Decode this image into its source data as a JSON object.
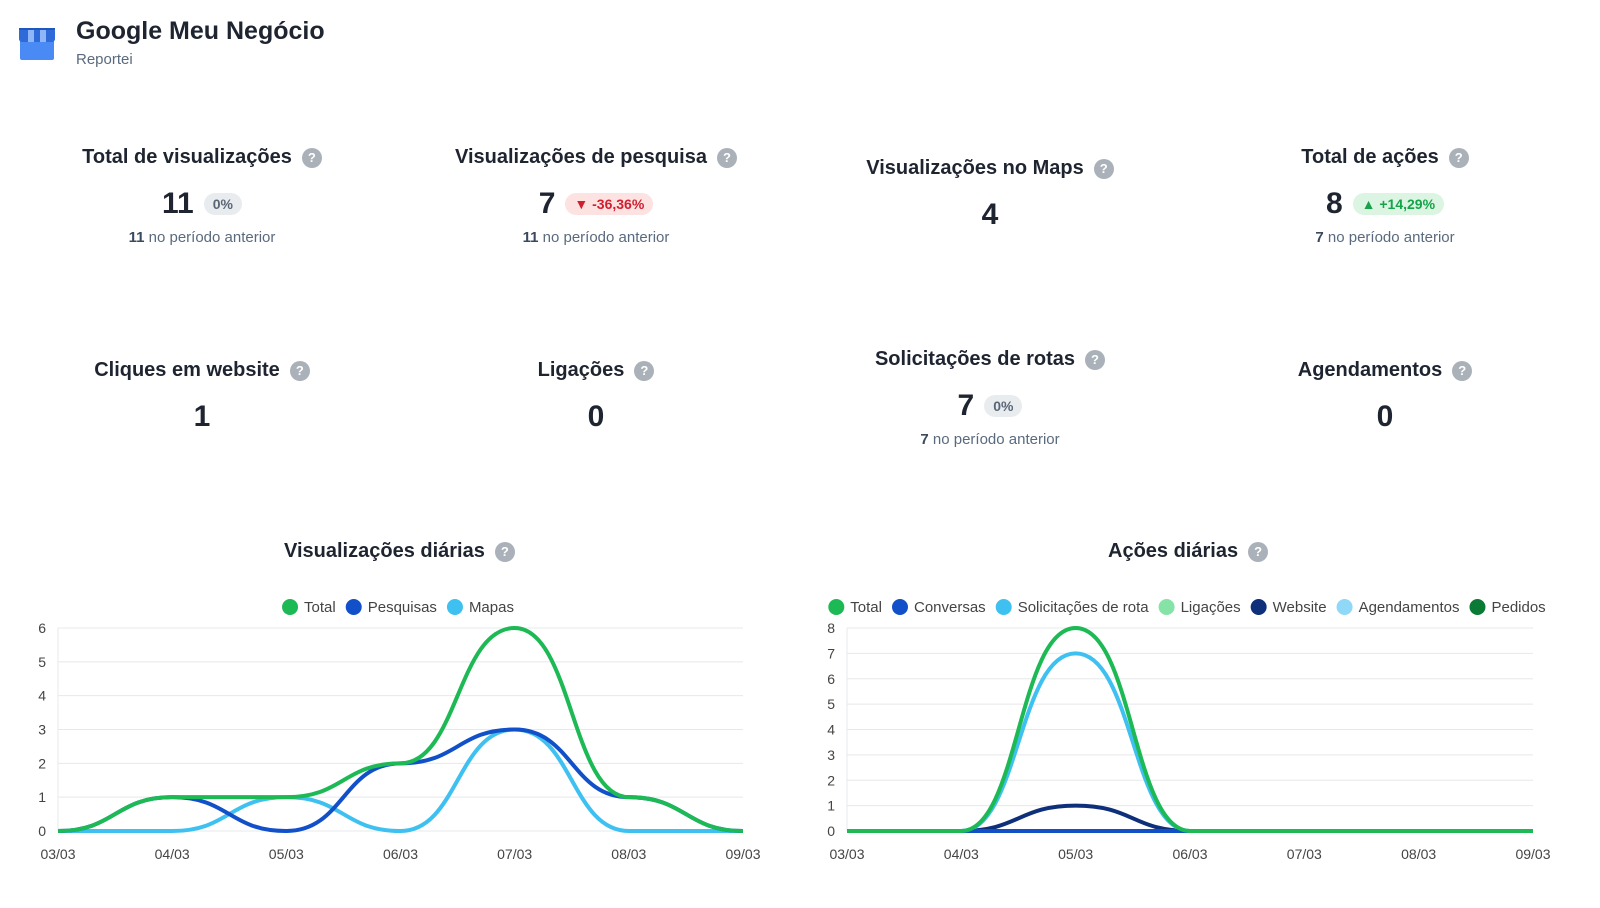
{
  "header": {
    "title": "Google Meu Negócio",
    "subtitle": "Reportei"
  },
  "cards": [
    {
      "title": "Total de visualizações",
      "value": "11",
      "badge": "0%",
      "badge_type": "neutral",
      "prev_value": "11",
      "prev_text": "no período anterior"
    },
    {
      "title": "Visualizações de pesquisa",
      "value": "7",
      "badge": "-36,36%",
      "badge_type": "down",
      "prev_value": "11",
      "prev_text": "no período anterior"
    },
    {
      "title": "Visualizações no Maps",
      "value": "4"
    },
    {
      "title": "Total de ações",
      "value": "8",
      "badge": "+14,29%",
      "badge_type": "up",
      "prev_value": "7",
      "prev_text": "no período anterior"
    },
    {
      "title": "Cliques em website",
      "value": "1"
    },
    {
      "title": "Ligações",
      "value": "0"
    },
    {
      "title": "Solicitações de rotas",
      "value": "7",
      "badge": "0%",
      "badge_type": "neutral",
      "prev_value": "7",
      "prev_text": "no período anterior"
    },
    {
      "title": "Agendamentos",
      "value": "0"
    }
  ],
  "help_glyph": "?",
  "icons": {
    "help": "question-circle-icon",
    "logo": "storefront-icon",
    "trend_up": "triangle-up-icon",
    "trend_down": "triangle-down-icon"
  },
  "colors": {
    "total": "#1db954",
    "pesquisas": "#1150c8",
    "mapas": "#3ec0f0",
    "conversas": "#1150c8",
    "rotas": "#3ec0f0",
    "ligacoes": "#86e3a8",
    "website": "#0e2f7a",
    "agendamentos": "#8fd8f8",
    "pedidos": "#0a7a34",
    "badge_up": "#16a34a",
    "badge_down": "#d0202f"
  },
  "chart_data": [
    {
      "type": "line",
      "title": "Visualizações diárias",
      "categories": [
        "03/03",
        "04/03",
        "05/03",
        "06/03",
        "07/03",
        "08/03",
        "09/03"
      ],
      "ylim": [
        0,
        6
      ],
      "yticks": [
        0,
        1,
        2,
        3,
        4,
        5,
        6
      ],
      "grid": true,
      "legend_position": "top",
      "series": [
        {
          "name": "Total",
          "color": "#1db954",
          "values": [
            0,
            1,
            1,
            2,
            6,
            1,
            0
          ]
        },
        {
          "name": "Pesquisas",
          "color": "#1150c8",
          "values": [
            0,
            1,
            0,
            2,
            3,
            1,
            0
          ]
        },
        {
          "name": "Mapas",
          "color": "#3ec0f0",
          "values": [
            0,
            0,
            1,
            0,
            3,
            0,
            0
          ]
        }
      ]
    },
    {
      "type": "line",
      "title": "Ações diárias",
      "categories": [
        "03/03",
        "04/03",
        "05/03",
        "06/03",
        "07/03",
        "08/03",
        "09/03"
      ],
      "ylim": [
        0,
        8
      ],
      "yticks": [
        0,
        1,
        2,
        3,
        4,
        5,
        6,
        7,
        8
      ],
      "grid": true,
      "legend_position": "top",
      "series": [
        {
          "name": "Total",
          "color": "#1db954",
          "values": [
            0,
            0,
            8,
            0,
            0,
            0,
            0
          ]
        },
        {
          "name": "Conversas",
          "color": "#1150c8",
          "values": [
            0,
            0,
            0,
            0,
            0,
            0,
            0
          ]
        },
        {
          "name": "Solicitações de rota",
          "color": "#3ec0f0",
          "values": [
            0,
            0,
            7,
            0,
            0,
            0,
            0
          ]
        },
        {
          "name": "Ligações",
          "color": "#86e3a8",
          "values": [
            0,
            0,
            0,
            0,
            0,
            0,
            0
          ]
        },
        {
          "name": "Website",
          "color": "#0e2f7a",
          "values": [
            0,
            0,
            1,
            0,
            0,
            0,
            0
          ]
        },
        {
          "name": "Agendamentos",
          "color": "#8fd8f8",
          "values": [
            0,
            0,
            0,
            0,
            0,
            0,
            0
          ]
        },
        {
          "name": "Pedidos",
          "color": "#0a7a34",
          "values": [
            0,
            0,
            0,
            0,
            0,
            0,
            0
          ]
        }
      ]
    }
  ]
}
